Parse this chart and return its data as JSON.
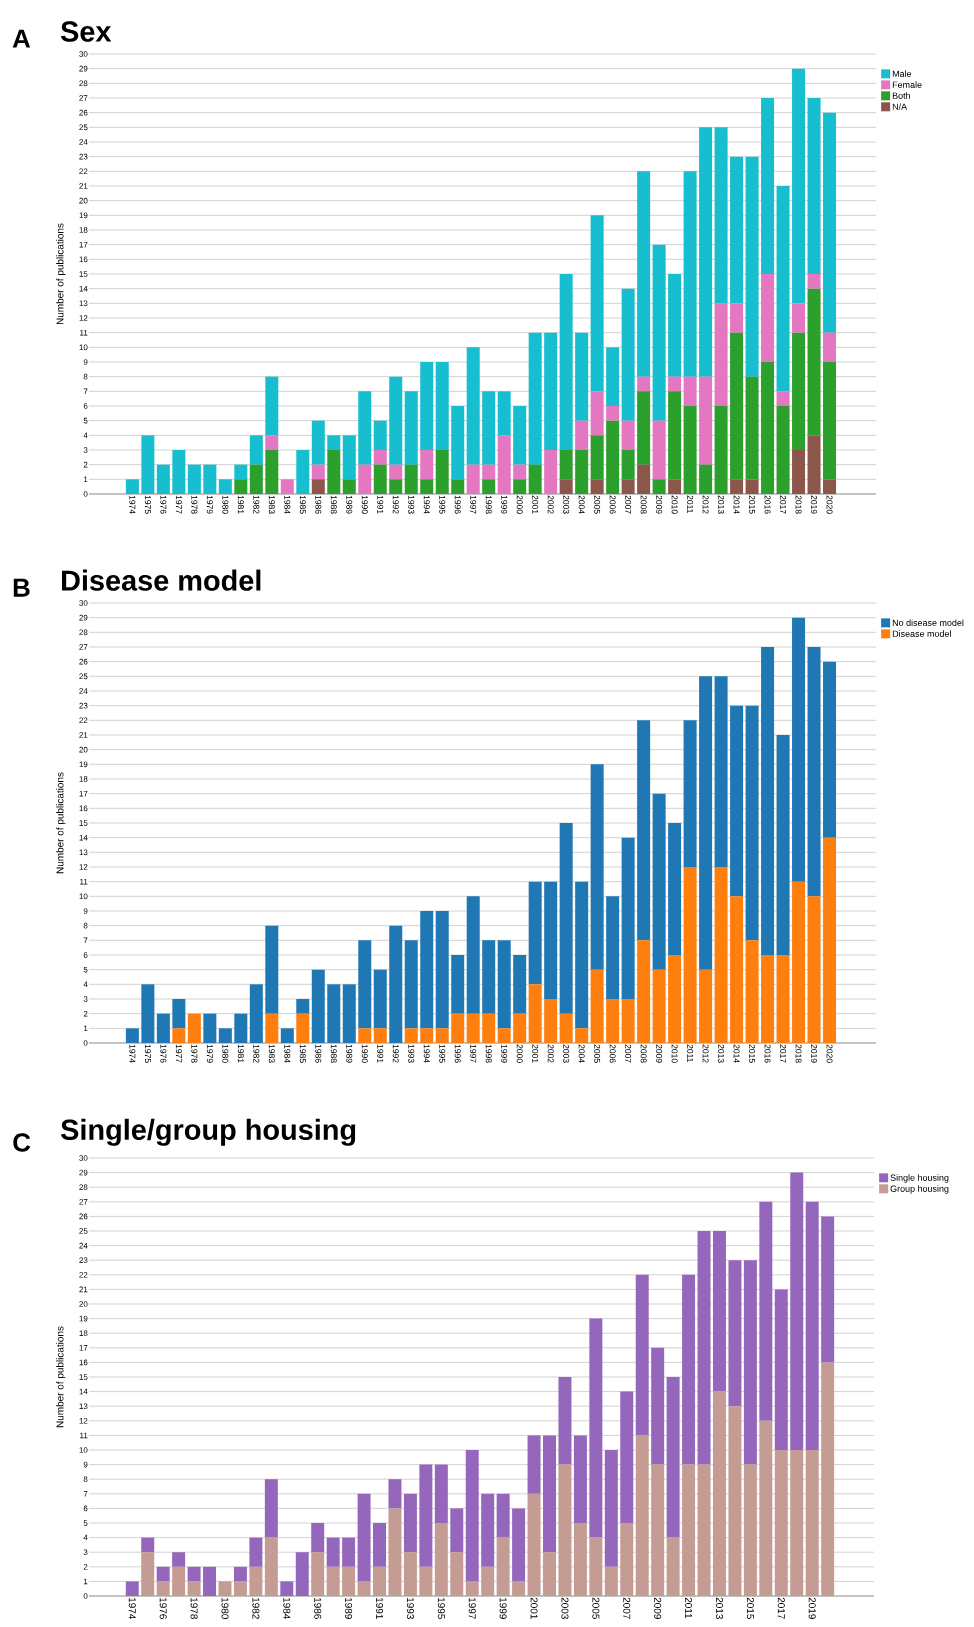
{
  "chart_data": [
    {
      "type": "bar",
      "title": "Sex",
      "annotations": [
        "A"
      ],
      "ylabel": "Number of publications",
      "stacked": true,
      "grid": "y",
      "legend": "top right",
      "ylim": [
        0,
        30
      ],
      "yticks": [
        0,
        1,
        2,
        3,
        4,
        5,
        6,
        7,
        8,
        9,
        10,
        11,
        12,
        13,
        14,
        15,
        16,
        17,
        18,
        19,
        20,
        21,
        22,
        23,
        24,
        25,
        26,
        27,
        28,
        29,
        30
      ],
      "categories": [
        "1974",
        "1975",
        "1976",
        "1977",
        "1978",
        "1979",
        "1980",
        "1981",
        "1982",
        "1983",
        "1984",
        "1985",
        "1986",
        "1988",
        "1989",
        "1990",
        "1991",
        "1992",
        "1993",
        "1994",
        "1995",
        "1996",
        "1997",
        "1998",
        "1999",
        "2000",
        "2001",
        "2002",
        "2003",
        "2004",
        "2005",
        "2006",
        "2007",
        "2008",
        "2009",
        "2010",
        "2011",
        "2012",
        "2013",
        "2014",
        "2015",
        "2016",
        "2017",
        "2018",
        "2019",
        "2020"
      ],
      "series": [
        {
          "name": "N/A",
          "color": "#8c564b",
          "values": [
            0,
            0,
            0,
            0,
            0,
            0,
            0,
            0,
            0,
            0,
            0,
            0,
            1,
            0,
            0,
            0,
            0,
            0,
            0,
            0,
            0,
            0,
            0,
            0,
            0,
            0,
            0,
            0,
            1,
            0,
            1,
            0,
            1,
            2,
            0,
            1,
            0,
            0,
            0,
            1,
            1,
            0,
            0,
            3,
            4,
            1
          ]
        },
        {
          "name": "Both",
          "color": "#2ca02c",
          "values": [
            0,
            0,
            0,
            0,
            0,
            0,
            0,
            1,
            2,
            3,
            0,
            0,
            0,
            3,
            1,
            0,
            2,
            1,
            2,
            1,
            3,
            1,
            0,
            1,
            0,
            1,
            2,
            0,
            2,
            3,
            3,
            5,
            2,
            5,
            1,
            6,
            6,
            2,
            6,
            10,
            7,
            9,
            6,
            8,
            10,
            8
          ]
        },
        {
          "name": "Female",
          "color": "#e377c2",
          "values": [
            0,
            0,
            0,
            0,
            0,
            0,
            0,
            0,
            0,
            1,
            1,
            0,
            1,
            0,
            0,
            2,
            1,
            1,
            0,
            2,
            0,
            0,
            2,
            1,
            4,
            1,
            0,
            3,
            0,
            2,
            3,
            1,
            2,
            1,
            4,
            1,
            2,
            6,
            7,
            2,
            0,
            6,
            1,
            2,
            1,
            2
          ]
        },
        {
          "name": "Male",
          "color": "#17becf",
          "values": [
            1,
            4,
            2,
            3,
            2,
            2,
            1,
            1,
            2,
            4,
            0,
            3,
            3,
            1,
            3,
            5,
            2,
            6,
            5,
            6,
            6,
            5,
            8,
            5,
            3,
            4,
            9,
            8,
            12,
            6,
            12,
            4,
            9,
            14,
            12,
            7,
            14,
            17,
            12,
            10,
            15,
            12,
            14,
            16,
            12,
            15
          ]
        }
      ]
    },
    {
      "type": "bar",
      "title": "Disease model",
      "annotations": [
        "B"
      ],
      "ylabel": "Number of publications",
      "stacked": true,
      "grid": "y",
      "legend": "top right",
      "ylim": [
        0,
        30
      ],
      "yticks": [
        0,
        1,
        2,
        3,
        4,
        5,
        6,
        7,
        8,
        9,
        10,
        11,
        12,
        13,
        14,
        15,
        16,
        17,
        18,
        19,
        20,
        21,
        22,
        23,
        24,
        25,
        26,
        27,
        28,
        29,
        30
      ],
      "categories": [
        "1974",
        "1975",
        "1976",
        "1977",
        "1978",
        "1979",
        "1980",
        "1981",
        "1982",
        "1983",
        "1984",
        "1985",
        "1986",
        "1988",
        "1989",
        "1990",
        "1991",
        "1992",
        "1993",
        "1994",
        "1995",
        "1996",
        "1997",
        "1998",
        "1999",
        "2000",
        "2001",
        "2002",
        "2003",
        "2004",
        "2005",
        "2006",
        "2007",
        "2008",
        "2009",
        "2010",
        "2011",
        "2012",
        "2013",
        "2014",
        "2015",
        "2016",
        "2017",
        "2018",
        "2019",
        "2020"
      ],
      "series": [
        {
          "name": "Disease model",
          "color": "#ff7f0e",
          "values": [
            0,
            0,
            0,
            1,
            2,
            0,
            0,
            0,
            0,
            2,
            0,
            2,
            0,
            0,
            0,
            1,
            1,
            0,
            1,
            1,
            1,
            2,
            2,
            2,
            1,
            2,
            4,
            3,
            2,
            1,
            5,
            3,
            3,
            7,
            5,
            6,
            12,
            5,
            12,
            10,
            7,
            6,
            6,
            11,
            10,
            14
          ]
        },
        {
          "name": "No disease model",
          "color": "#1f77b4",
          "values": [
            1,
            4,
            2,
            2,
            0,
            2,
            1,
            2,
            4,
            6,
            1,
            1,
            5,
            4,
            4,
            6,
            4,
            8,
            6,
            8,
            8,
            4,
            8,
            5,
            6,
            4,
            7,
            8,
            13,
            10,
            14,
            7,
            11,
            15,
            12,
            9,
            10,
            20,
            13,
            13,
            16,
            21,
            15,
            18,
            17,
            12
          ]
        }
      ]
    },
    {
      "type": "bar",
      "title": "Single/group housing",
      "annotations": [
        "C"
      ],
      "ylabel": "Number of publications",
      "stacked": true,
      "grid": "y",
      "legend": "top right",
      "ylim": [
        0,
        30
      ],
      "yticks": [
        0,
        1,
        2,
        3,
        4,
        5,
        6,
        7,
        8,
        9,
        10,
        11,
        12,
        13,
        14,
        15,
        16,
        17,
        18,
        19,
        20,
        21,
        22,
        23,
        24,
        25,
        26,
        27,
        28,
        29,
        30
      ],
      "categories": [
        "1974",
        null,
        "1976",
        null,
        "1978",
        null,
        "1980",
        null,
        "1982",
        null,
        "1984",
        null,
        "1986",
        null,
        "1989",
        null,
        "1991",
        null,
        "1993",
        null,
        "1995",
        null,
        "1997",
        null,
        "1999",
        null,
        "2001",
        null,
        "2003",
        null,
        "2005",
        null,
        "2007",
        null,
        "2009",
        null,
        "2011",
        null,
        "2013",
        null,
        "2015",
        null,
        "2017",
        null,
        "2019",
        null
      ],
      "series": [
        {
          "name": "Group housing",
          "color": "#c49c94",
          "values": [
            0,
            3,
            1,
            2,
            1,
            0,
            1,
            1,
            2,
            4,
            0,
            0,
            3,
            2,
            2,
            1,
            2,
            6,
            3,
            2,
            5,
            3,
            1,
            2,
            4,
            1,
            7,
            3,
            9,
            5,
            4,
            2,
            5,
            11,
            9,
            4,
            9,
            9,
            14,
            13,
            9,
            12,
            10,
            10,
            10,
            16
          ]
        },
        {
          "name": "Single housing",
          "color": "#9467bd",
          "values": [
            1,
            1,
            1,
            1,
            1,
            2,
            0,
            1,
            2,
            4,
            1,
            3,
            2,
            2,
            2,
            6,
            3,
            2,
            4,
            7,
            4,
            3,
            9,
            5,
            3,
            5,
            4,
            8,
            6,
            6,
            15,
            8,
            9,
            11,
            8,
            11,
            13,
            16,
            11,
            10,
            14,
            15,
            11,
            19,
            17,
            10
          ]
        }
      ]
    }
  ]
}
